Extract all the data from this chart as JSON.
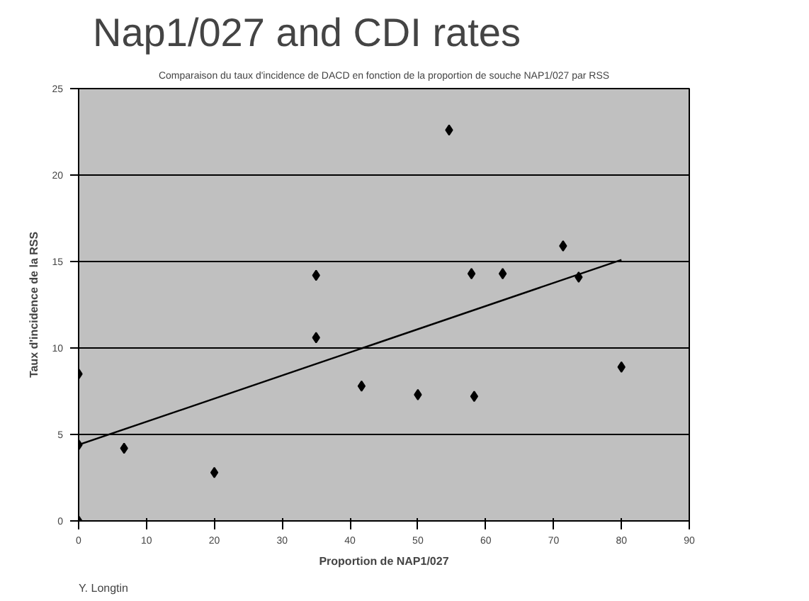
{
  "chart_data": {
    "type": "scatter",
    "title": "Nap1/027 and CDI rates",
    "subtitle": "Comparaison du taux d'incidence de DACD en fonction de la proportion de souche NAP1/027 par RSS",
    "xlabel": "Proportion de NAP1/027",
    "ylabel": "Taux d'incidence de la RSS",
    "series": [
      {
        "color": "#000000",
        "marker": "diamond",
        "x": [
          0,
          0,
          0,
          6.7,
          20,
          35,
          35,
          41.7,
          50,
          54.6,
          57.9,
          58.3,
          62.5,
          71.4,
          73.7,
          80
        ],
        "values": [
          8.5,
          4.4,
          0,
          4.2,
          2.8,
          14.2,
          10.6,
          7.8,
          7.3,
          22.6,
          14.3,
          7.2,
          14.3,
          15.9,
          14.1,
          8.9
        ]
      },
      {
        "type": "line",
        "marker": "none",
        "color": "#000000",
        "x": [
          0,
          80
        ],
        "values": [
          4.4,
          15.1
        ]
      }
    ],
    "xlim": [
      0,
      90
    ],
    "ylim": [
      0,
      25
    ],
    "xticks": [
      0,
      10,
      20,
      30,
      40,
      50,
      60,
      70,
      80,
      90
    ],
    "yticks": [
      0,
      5,
      10,
      15,
      20,
      25
    ],
    "grid": "y",
    "annotations": [
      "Y. Longtin"
    ]
  }
}
